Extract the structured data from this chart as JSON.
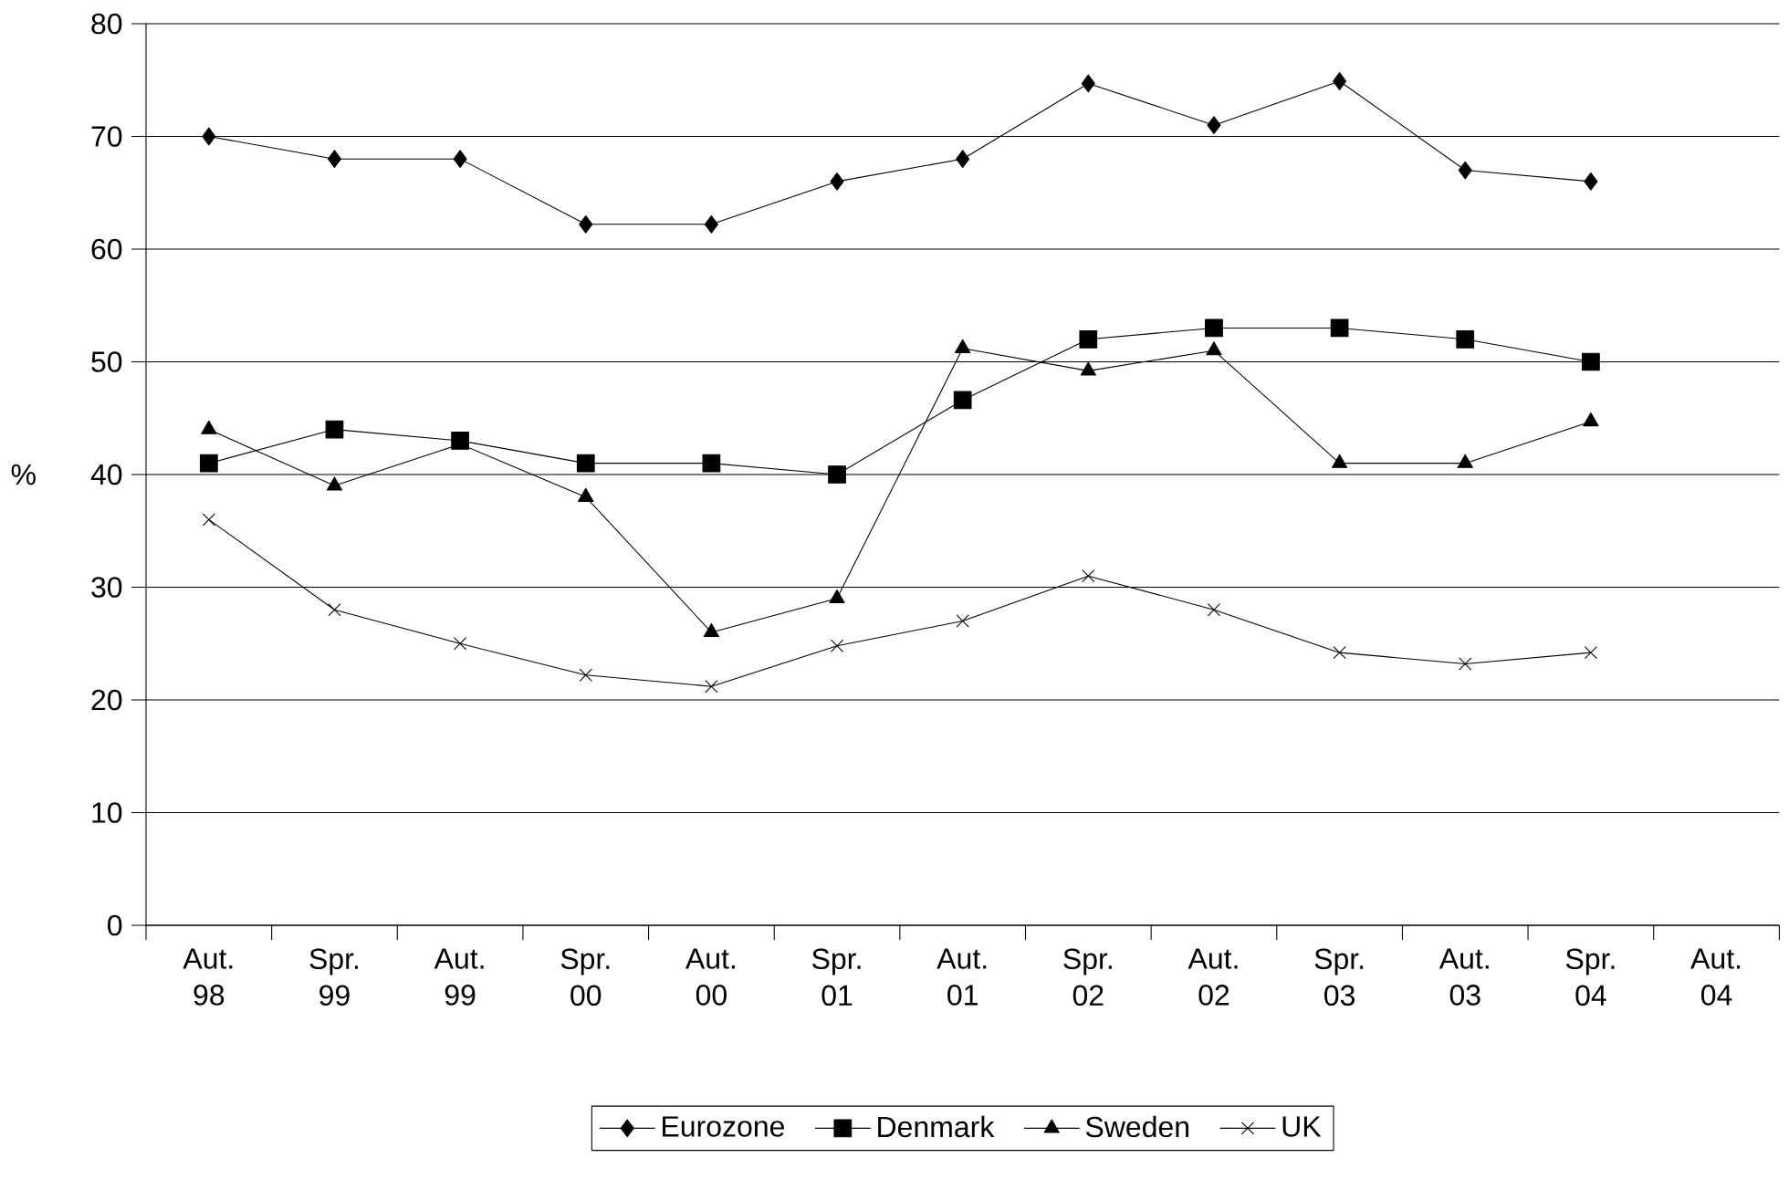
{
  "chart_data": {
    "type": "line",
    "ylabel": "%",
    "categories": [
      "Aut. 98",
      "Spr. 99",
      "Aut. 99",
      "Spr. 00",
      "Aut. 00",
      "Spr. 01",
      "Aut. 01",
      "Spr. 02",
      "Aut. 02",
      "Spr. 03",
      "Aut. 03",
      "Spr. 04",
      "Aut. 04"
    ],
    "series": [
      {
        "name": "Eurozone",
        "color": "#000000",
        "marker": "diamond",
        "values": [
          70,
          68,
          68,
          62.2,
          62.2,
          66,
          68,
          74.7,
          71,
          74.9,
          67,
          66,
          null
        ]
      },
      {
        "name": "Denmark",
        "color": "#000000",
        "marker": "square",
        "values": [
          41,
          44,
          43,
          41,
          41,
          40,
          46.6,
          52,
          53,
          53,
          52,
          50,
          null
        ]
      },
      {
        "name": "Sweden",
        "color": "#000000",
        "marker": "triangle",
        "values": [
          44,
          39,
          42.7,
          38,
          26,
          29,
          51.2,
          49.2,
          51,
          41,
          41,
          44.7,
          null
        ]
      },
      {
        "name": "UK",
        "color": "#000000",
        "marker": "cross",
        "values": [
          36,
          28,
          25,
          22.2,
          21.2,
          24.8,
          27,
          31,
          28,
          24.2,
          23.2,
          24.2,
          null
        ]
      }
    ],
    "ylim": [
      0,
      80
    ],
    "yticks": [
      0,
      10,
      20,
      30,
      40,
      50,
      60,
      70,
      80
    ],
    "grid": "y",
    "legend": "bottom",
    "line_style": "solid"
  }
}
